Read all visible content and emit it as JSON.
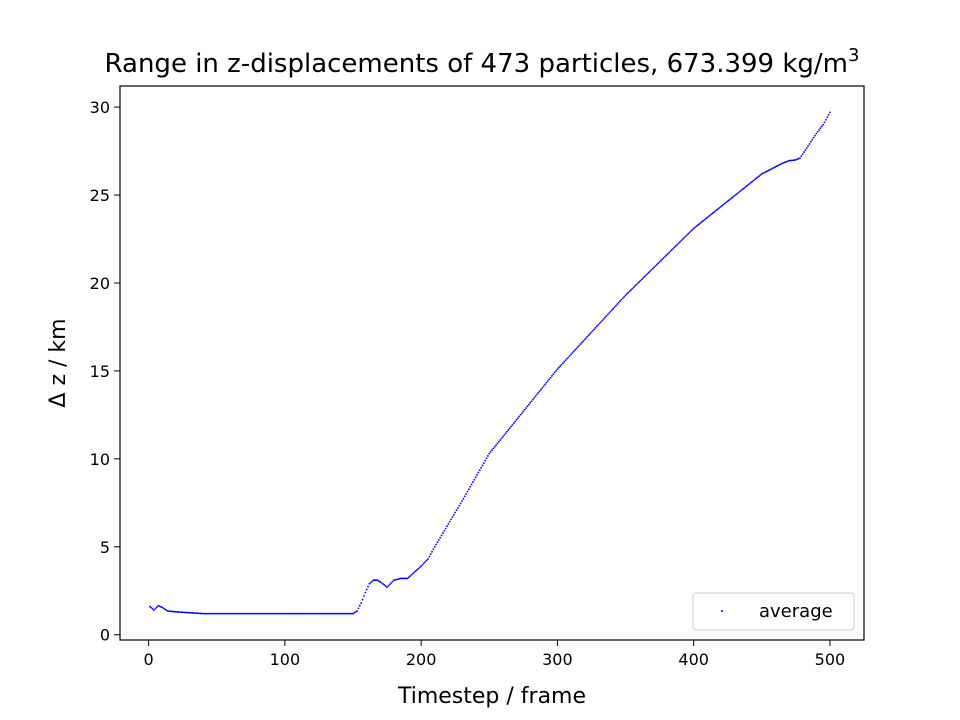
{
  "chart_data": {
    "type": "scatter",
    "title": "Range in z-displacements of 473 particles, 673.399 kg/m",
    "title_superscript": "3",
    "xlabel": "Timestep / frame",
    "ylabel": "Δ z / km",
    "xlim": [
      -21,
      525
    ],
    "ylim": [
      -0.3,
      31.2
    ],
    "xticks": [
      0,
      100,
      200,
      300,
      400,
      500
    ],
    "yticks": [
      0,
      5,
      10,
      15,
      20,
      25,
      30
    ],
    "grid": false,
    "legend_position": "lower-right",
    "series": [
      {
        "name": "average",
        "color": "#0000ff",
        "marker": "point",
        "anchors": [
          [
            1,
            1.6
          ],
          [
            4,
            1.4
          ],
          [
            7,
            1.65
          ],
          [
            10,
            1.55
          ],
          [
            14,
            1.35
          ],
          [
            20,
            1.3
          ],
          [
            30,
            1.25
          ],
          [
            40,
            1.2
          ],
          [
            60,
            1.2
          ],
          [
            100,
            1.2
          ],
          [
            150,
            1.2
          ],
          [
            153,
            1.35
          ],
          [
            156,
            1.8
          ],
          [
            159,
            2.4
          ],
          [
            162,
            2.9
          ],
          [
            165,
            3.1
          ],
          [
            168,
            3.1
          ],
          [
            171,
            2.95
          ],
          [
            175,
            2.7
          ],
          [
            180,
            3.1
          ],
          [
            185,
            3.2
          ],
          [
            190,
            3.2
          ],
          [
            200,
            3.9
          ],
          [
            205,
            4.3
          ],
          [
            210,
            5.0
          ],
          [
            220,
            6.3
          ],
          [
            230,
            7.6
          ],
          [
            250,
            10.3
          ],
          [
            300,
            15.1
          ],
          [
            350,
            19.3
          ],
          [
            400,
            23.1
          ],
          [
            450,
            26.2
          ],
          [
            465,
            26.8
          ],
          [
            470,
            26.95
          ],
          [
            475,
            27.0
          ],
          [
            478,
            27.1
          ],
          [
            485,
            27.9
          ],
          [
            490,
            28.5
          ],
          [
            495,
            29.0
          ],
          [
            500,
            29.7
          ]
        ]
      }
    ]
  }
}
